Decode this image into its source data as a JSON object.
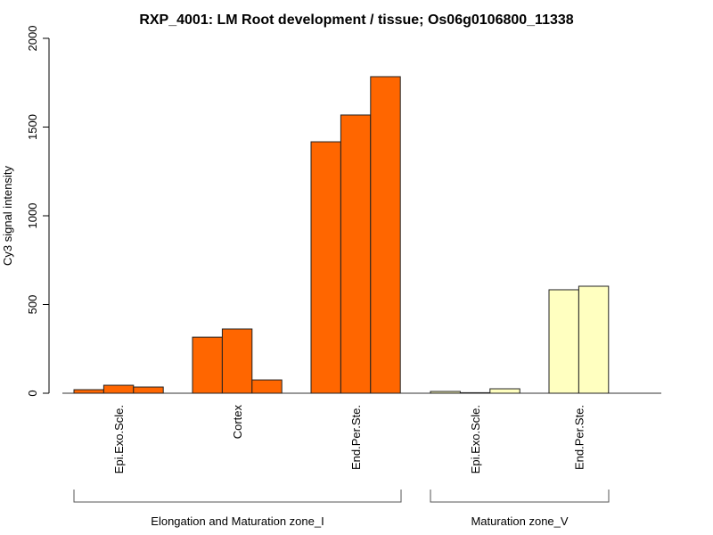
{
  "chart_data": {
    "type": "bar",
    "title": "RXP_4001: LM Root development / tissue; Os06g0106800_11338",
    "xlabel": "",
    "ylabel": "Cy3 signal intensity",
    "ylim": [
      0,
      2000
    ],
    "yticks": [
      "0",
      "500",
      "1000",
      "1500",
      "2000"
    ],
    "grid": false,
    "categories": [
      {
        "label": "Epi.Exo.Scle.",
        "group": 0,
        "color": "#FF6600",
        "values": [
          20,
          45,
          35
        ]
      },
      {
        "label": "Cortex",
        "group": 0,
        "color": "#FF6600",
        "values": [
          316,
          362,
          75
        ]
      },
      {
        "label": "End.Per.Ste.",
        "group": 0,
        "color": "#FF6600",
        "values": [
          1417,
          1568,
          1784
        ]
      },
      {
        "label": "Epi.Exo.Scle.",
        "group": 1,
        "color": "#FFFFC0",
        "values": [
          10,
          3,
          25
        ]
      },
      {
        "label": "End.Per.Ste.",
        "group": 1,
        "color": "#FFFFC0",
        "values": [
          583,
          603
        ]
      }
    ],
    "groups": [
      {
        "label": "Elongation and Maturation zone_I"
      },
      {
        "label": "Maturation zone_V"
      }
    ]
  }
}
